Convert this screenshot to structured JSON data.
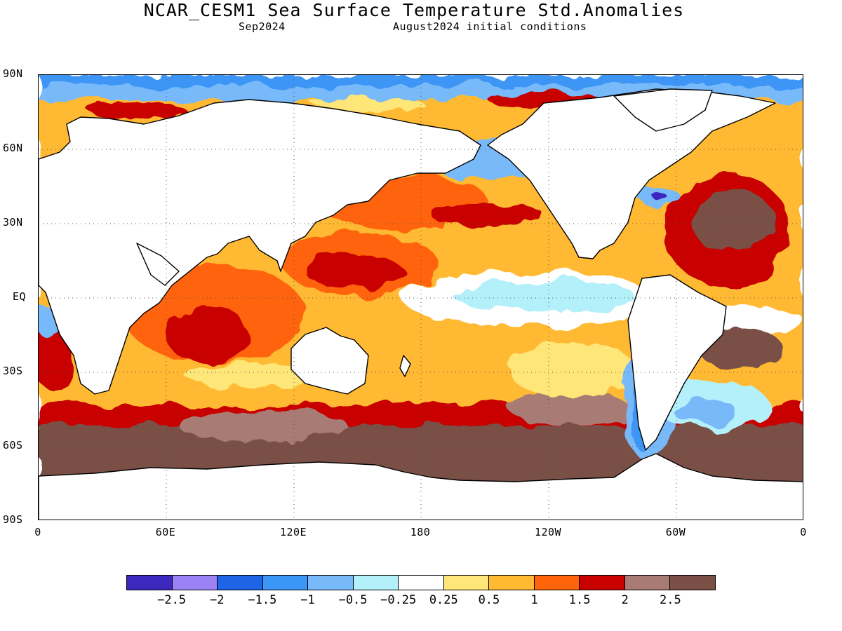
{
  "header": {
    "title": "NCAR_CESM1 Sea Surface Temperature Std.Anomalies",
    "forecast_month": "Sep2024",
    "initial_conditions": "August2024 initial conditions"
  },
  "map": {
    "lat_labels": [
      "90N",
      "60N",
      "30N",
      "EQ",
      "30S",
      "60S",
      "90S"
    ],
    "lon_labels": [
      "0",
      "60E",
      "120E",
      "180",
      "120W",
      "60W",
      "0"
    ],
    "land_color": "#ffffff",
    "grid_style": "dotted"
  },
  "colorbar": {
    "colors": [
      "#3c28bd",
      "#9b82f5",
      "#1e64e6",
      "#3c96f5",
      "#78b9fa",
      "#b4f0fa",
      "#ffffff",
      "#ffe678",
      "#ffb932",
      "#ff640a",
      "#c80000",
      "#a87c74",
      "#7a4f45"
    ],
    "labels": [
      "−2.5",
      "−2",
      "−1.5",
      "−1",
      "−0.5",
      "−0.25",
      "0.25",
      "0.5",
      "1",
      "1.5",
      "2",
      "2.5"
    ]
  }
}
